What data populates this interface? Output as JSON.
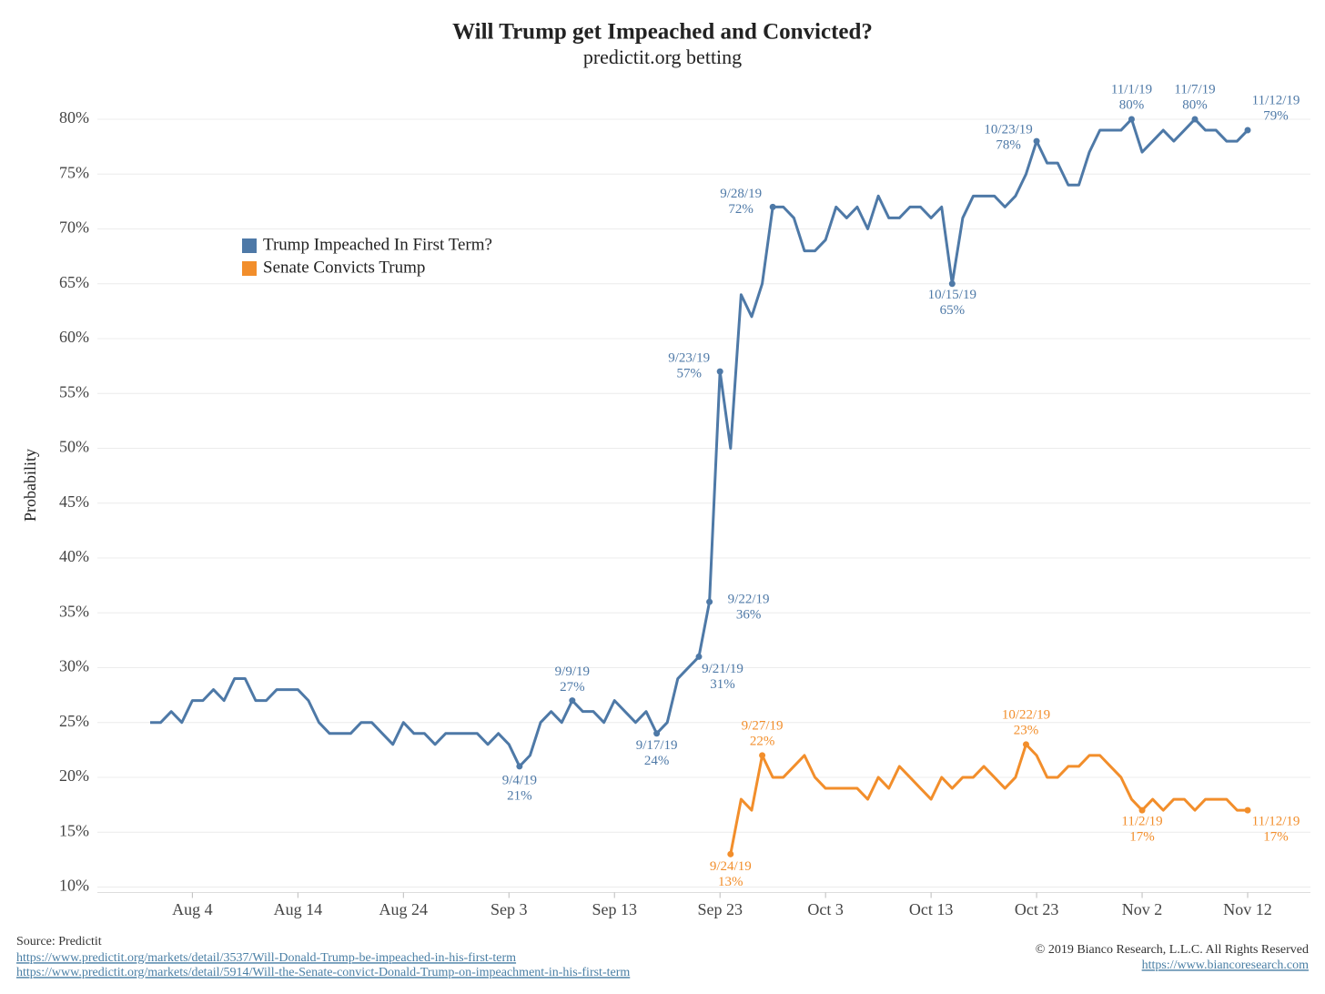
{
  "chart_data": {
    "type": "line",
    "title": "Will Trump get Impeached and Convicted?",
    "subtitle": "predictit.org betting",
    "y_label": "Probability",
    "x": [
      "2019-07-31",
      "2019-08-01",
      "2019-08-02",
      "2019-08-03",
      "2019-08-04",
      "2019-08-05",
      "2019-08-06",
      "2019-08-07",
      "2019-08-08",
      "2019-08-09",
      "2019-08-10",
      "2019-08-11",
      "2019-08-12",
      "2019-08-13",
      "2019-08-14",
      "2019-08-15",
      "2019-08-16",
      "2019-08-17",
      "2019-08-18",
      "2019-08-19",
      "2019-08-20",
      "2019-08-21",
      "2019-08-22",
      "2019-08-23",
      "2019-08-24",
      "2019-08-25",
      "2019-08-26",
      "2019-08-27",
      "2019-08-28",
      "2019-08-29",
      "2019-08-30",
      "2019-08-31",
      "2019-09-01",
      "2019-09-02",
      "2019-09-03",
      "2019-09-04",
      "2019-09-05",
      "2019-09-06",
      "2019-09-07",
      "2019-09-08",
      "2019-09-09",
      "2019-09-10",
      "2019-09-11",
      "2019-09-12",
      "2019-09-13",
      "2019-09-14",
      "2019-09-15",
      "2019-09-16",
      "2019-09-17",
      "2019-09-18",
      "2019-09-19",
      "2019-09-20",
      "2019-09-21",
      "2019-09-22",
      "2019-09-23",
      "2019-09-24",
      "2019-09-25",
      "2019-09-26",
      "2019-09-27",
      "2019-09-28",
      "2019-09-29",
      "2019-09-30",
      "2019-10-01",
      "2019-10-02",
      "2019-10-03",
      "2019-10-04",
      "2019-10-05",
      "2019-10-06",
      "2019-10-07",
      "2019-10-08",
      "2019-10-09",
      "2019-10-10",
      "2019-10-11",
      "2019-10-12",
      "2019-10-13",
      "2019-10-14",
      "2019-10-15",
      "2019-10-16",
      "2019-10-17",
      "2019-10-18",
      "2019-10-19",
      "2019-10-20",
      "2019-10-21",
      "2019-10-22",
      "2019-10-23",
      "2019-10-24",
      "2019-10-25",
      "2019-10-26",
      "2019-10-27",
      "2019-10-28",
      "2019-10-29",
      "2019-10-30",
      "2019-10-31",
      "2019-11-01",
      "2019-11-02",
      "2019-11-03",
      "2019-11-04",
      "2019-11-05",
      "2019-11-06",
      "2019-11-07",
      "2019-11-08",
      "2019-11-09",
      "2019-11-10",
      "2019-11-11",
      "2019-11-12"
    ],
    "series": [
      {
        "name": "Trump Impeached In First Term?",
        "color": "#4e79a7",
        "values": [
          25,
          25,
          26,
          25,
          27,
          27,
          28,
          27,
          29,
          29,
          27,
          27,
          28,
          28,
          28,
          27,
          25,
          24,
          24,
          24,
          25,
          25,
          24,
          23,
          25,
          24,
          24,
          23,
          24,
          24,
          24,
          24,
          23,
          24,
          23,
          21,
          22,
          25,
          26,
          25,
          27,
          26,
          26,
          25,
          27,
          26,
          25,
          26,
          24,
          25,
          29,
          30,
          31,
          36,
          57,
          50,
          64,
          62,
          65,
          72,
          72,
          71,
          68,
          68,
          69,
          72,
          71,
          72,
          70,
          73,
          71,
          71,
          72,
          72,
          71,
          72,
          65,
          71,
          73,
          73,
          73,
          72,
          73,
          75,
          78,
          76,
          76,
          74,
          74,
          77,
          79,
          79,
          79,
          80,
          77,
          78,
          79,
          78,
          79,
          80,
          79,
          79,
          78,
          78,
          79
        ]
      },
      {
        "name": "Senate Convicts Trump",
        "color": "#f28e2b",
        "values": [
          null,
          null,
          null,
          null,
          null,
          null,
          null,
          null,
          null,
          null,
          null,
          null,
          null,
          null,
          null,
          null,
          null,
          null,
          null,
          null,
          null,
          null,
          null,
          null,
          null,
          null,
          null,
          null,
          null,
          null,
          null,
          null,
          null,
          null,
          null,
          null,
          null,
          null,
          null,
          null,
          null,
          null,
          null,
          null,
          null,
          null,
          null,
          null,
          null,
          null,
          null,
          null,
          null,
          null,
          null,
          13,
          18,
          17,
          22,
          20,
          20,
          21,
          22,
          20,
          19,
          19,
          19,
          19,
          18,
          20,
          19,
          21,
          20,
          19,
          18,
          20,
          19,
          20,
          20,
          21,
          20,
          19,
          20,
          23,
          22,
          20,
          20,
          21,
          21,
          22,
          22,
          21,
          20,
          18,
          17,
          18,
          17,
          18,
          18,
          17,
          18,
          18,
          18,
          17,
          17
        ]
      }
    ],
    "annotations": [
      {
        "x": "2019-09-04",
        "series": "Trump Impeached In First Term?",
        "label": "9/4/19",
        "value_label": "21%"
      },
      {
        "x": "2019-09-09",
        "series": "Trump Impeached In First Term?",
        "label": "9/9/19",
        "value_label": "27%"
      },
      {
        "x": "2019-09-17",
        "series": "Trump Impeached In First Term?",
        "label": "9/17/19",
        "value_label": "24%"
      },
      {
        "x": "2019-09-21",
        "series": "Trump Impeached In First Term?",
        "label": "9/21/19",
        "value_label": "31%"
      },
      {
        "x": "2019-09-22",
        "series": "Trump Impeached In First Term?",
        "label": "9/22/19",
        "value_label": "36%"
      },
      {
        "x": "2019-09-23",
        "series": "Trump Impeached In First Term?",
        "label": "9/23/19",
        "value_label": "57%"
      },
      {
        "x": "2019-09-28",
        "series": "Trump Impeached In First Term?",
        "label": "9/28/19",
        "value_label": "72%"
      },
      {
        "x": "2019-10-15",
        "series": "Trump Impeached In First Term?",
        "label": "10/15/19",
        "value_label": "65%"
      },
      {
        "x": "2019-10-23",
        "series": "Trump Impeached In First Term?",
        "label": "10/23/19",
        "value_label": "78%"
      },
      {
        "x": "2019-11-01",
        "series": "Trump Impeached In First Term?",
        "label": "11/1/19",
        "value_label": "80%"
      },
      {
        "x": "2019-11-07",
        "series": "Trump Impeached In First Term?",
        "label": "11/7/19",
        "value_label": "80%"
      },
      {
        "x": "2019-11-12",
        "series": "Trump Impeached In First Term?",
        "label": "11/12/19",
        "value_label": "79%"
      },
      {
        "x": "2019-09-24",
        "series": "Senate Convicts Trump",
        "label": "9/24/19",
        "value_label": "13%"
      },
      {
        "x": "2019-09-27",
        "series": "Senate Convicts Trump",
        "label": "9/27/19",
        "value_label": "22%"
      },
      {
        "x": "2019-10-22",
        "series": "Senate Convicts Trump",
        "label": "10/22/19",
        "value_label": "23%"
      },
      {
        "x": "2019-11-02",
        "series": "Senate Convicts Trump",
        "label": "11/2/19",
        "value_label": "17%"
      },
      {
        "x": "2019-11-12",
        "series": "Senate Convicts Trump",
        "label": "11/12/19",
        "value_label": "17%"
      }
    ],
    "xlim": [
      "2019-07-26",
      "2019-11-17"
    ],
    "xticks": [
      {
        "value": "2019-08-04",
        "label": "Aug 4"
      },
      {
        "value": "2019-08-14",
        "label": "Aug 14"
      },
      {
        "value": "2019-08-24",
        "label": "Aug 24"
      },
      {
        "value": "2019-09-03",
        "label": "Sep 3"
      },
      {
        "value": "2019-09-13",
        "label": "Sep 13"
      },
      {
        "value": "2019-09-23",
        "label": "Sep 23"
      },
      {
        "value": "2019-10-03",
        "label": "Oct 3"
      },
      {
        "value": "2019-10-13",
        "label": "Oct 13"
      },
      {
        "value": "2019-10-23",
        "label": "Oct 23"
      },
      {
        "value": "2019-11-02",
        "label": "Nov 2"
      },
      {
        "value": "2019-11-12",
        "label": "Nov 12"
      }
    ],
    "ylim": [
      9.5,
      83.5
    ],
    "yticks": [
      {
        "value": 10,
        "label": "10%"
      },
      {
        "value": 15,
        "label": "15%"
      },
      {
        "value": 20,
        "label": "20%"
      },
      {
        "value": 25,
        "label": "25%"
      },
      {
        "value": 30,
        "label": "30%"
      },
      {
        "value": 35,
        "label": "35%"
      },
      {
        "value": 40,
        "label": "40%"
      },
      {
        "value": 45,
        "label": "45%"
      },
      {
        "value": 50,
        "label": "50%"
      },
      {
        "value": 55,
        "label": "55%"
      },
      {
        "value": 60,
        "label": "60%"
      },
      {
        "value": 65,
        "label": "65%"
      },
      {
        "value": 70,
        "label": "70%"
      },
      {
        "value": 75,
        "label": "75%"
      },
      {
        "value": 80,
        "label": "80%"
      }
    ],
    "grid": true,
    "source": "Source: Predictit",
    "source_links": [
      "https://www.predictit.org/markets/detail/3537/Will-Donald-Trump-be-impeached-in-his-first-term",
      "https://www.predictit.org/markets/detail/5914/Will-the-Senate-convict-Donald-Trump-on-impeachment-in-his-first-term"
    ],
    "copyright": "© 2019 Bianco Research, L.L.C. All Rights Reserved",
    "website": "https://www.biancoresearch.com"
  }
}
